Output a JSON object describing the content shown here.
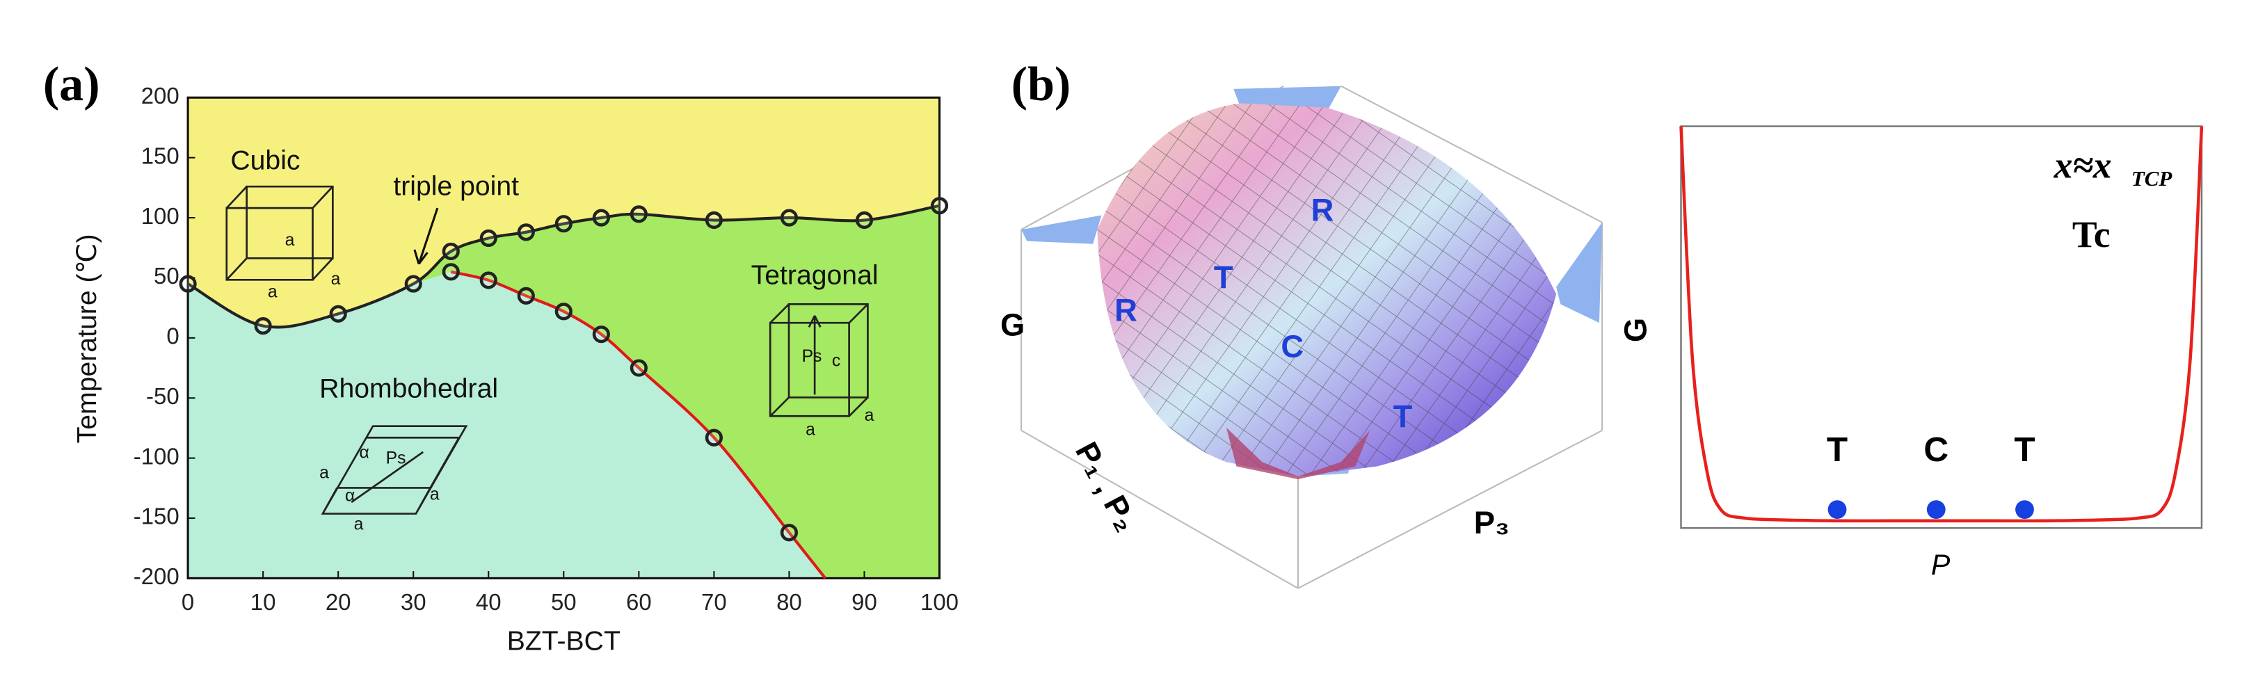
{
  "chart_data": [
    {
      "type": "phase",
      "panel_label": "(a)",
      "xlabel": "BZT-BCT",
      "ylabel": "Temperature (℃)",
      "xlim": [
        0,
        100
      ],
      "ylim": [
        -200,
        200
      ],
      "xticks": [
        0,
        10,
        20,
        30,
        40,
        50,
        60,
        70,
        80,
        90,
        100
      ],
      "yticks": [
        -200,
        -150,
        -100,
        -50,
        0,
        50,
        100,
        150,
        200
      ],
      "series": [
        {
          "color": "#222222",
          "x": [
            0,
            10,
            20,
            30,
            35,
            40,
            45,
            50,
            55,
            60,
            70,
            80,
            90,
            100
          ],
          "values": [
            45,
            10,
            20,
            45,
            72,
            83,
            88,
            95,
            100,
            103,
            98,
            100,
            98,
            110
          ]
        },
        {
          "color": "#e0191c",
          "x": [
            35,
            40,
            45,
            50,
            55,
            60,
            70,
            80
          ],
          "values": [
            55,
            48,
            35,
            22,
            3,
            -25,
            -83,
            -162
          ]
        }
      ],
      "fill_colors": [
        "#f6f07e",
        "#a6e962",
        "#b9eed9"
      ],
      "annotations": [
        "Cubic",
        "triple point",
        "Tetragonal",
        "Rhombohedral"
      ],
      "inset_labels": {
        "cubic": [
          "a",
          "a",
          "a"
        ],
        "tetragonal": [
          "Ps",
          "c",
          "a",
          "a"
        ],
        "rhombohedral": [
          "α",
          "α",
          "a",
          "a",
          "a",
          "Ps"
        ]
      }
    },
    {
      "type": "line",
      "xlabel": "P",
      "ylabel": "G",
      "xlim": [
        0,
        10
      ],
      "ylim": [
        0,
        10
      ],
      "color": "#e8201c",
      "x": [
        0,
        0.22,
        0.5,
        0.77,
        1.2,
        2,
        3,
        4,
        5,
        6,
        7,
        8,
        8.8,
        9.23,
        9.5,
        9.78,
        10
      ],
      "values": [
        10,
        4.2,
        1.4,
        0.45,
        0.25,
        0.2,
        0.18,
        0.18,
        0.18,
        0.18,
        0.18,
        0.2,
        0.25,
        0.45,
        1.4,
        4.2,
        10
      ],
      "points": {
        "color": "#1740e0",
        "x": [
          3,
          4.9,
          6.6
        ],
        "values": [
          0.46,
          0.46,
          0.46
        ],
        "labels": [
          "T",
          "C",
          "T"
        ]
      },
      "annotation": {
        "text": "x≈x",
        "sub": "TCP"
      },
      "subtitle": "Tc"
    }
  ],
  "surface": {
    "panel_label": "(b)",
    "axis_g": "G",
    "axis_p12": "P₁ , P₂",
    "axis_p3": "P₃",
    "labels": [
      "R",
      "T",
      "R",
      "C",
      "T"
    ]
  }
}
